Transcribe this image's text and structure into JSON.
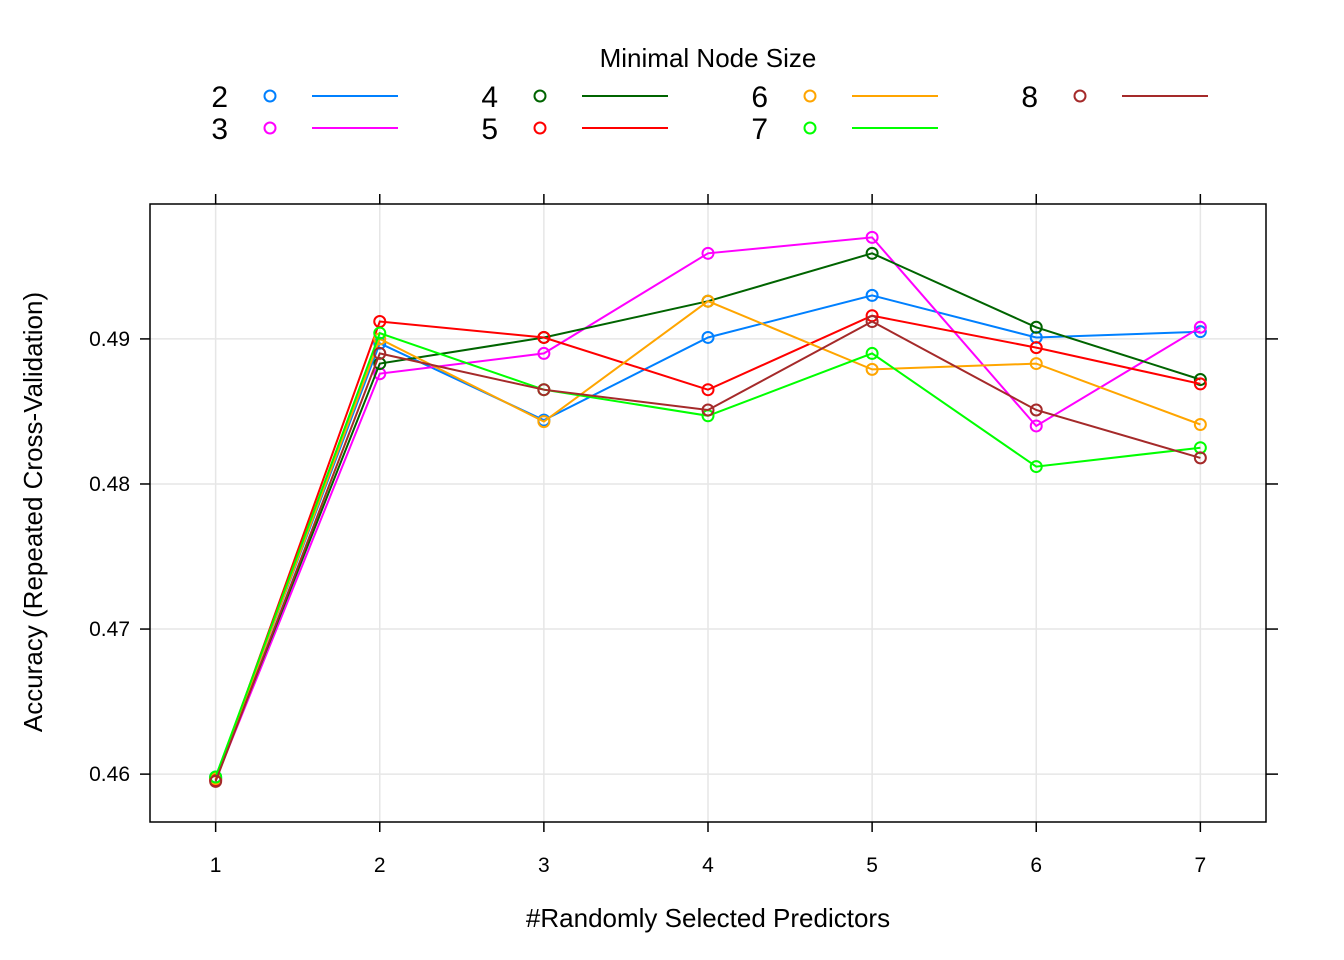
{
  "chart_data": {
    "type": "line",
    "legend": {
      "title": "Minimal Node Size",
      "placement": "top"
    },
    "xlabel": "#Randomly Selected Predictors",
    "ylabel": "Accuracy (Repeated Cross-Validation)",
    "x": [
      1,
      2,
      3,
      4,
      5,
      6,
      7
    ],
    "x_ticks": [
      "1",
      "2",
      "3",
      "4",
      "5",
      "6",
      "7"
    ],
    "y_ticks": [
      {
        "value": 0.46,
        "label": "0.46"
      },
      {
        "value": 0.47,
        "label": "0.47"
      },
      {
        "value": 0.48,
        "label": "0.48"
      },
      {
        "value": 0.49,
        "label": "0.49"
      }
    ],
    "xlim": [
      0.6,
      7.4
    ],
    "ylim": [
      0.4567,
      0.4993
    ],
    "grid": true,
    "series": [
      {
        "name": "2",
        "color": "#0080ff",
        "values": [
          0.4598,
          0.4897,
          0.4844,
          0.4901,
          0.493,
          0.4901,
          0.4905
        ]
      },
      {
        "name": "3",
        "color": "#ff00ff",
        "values": [
          0.4596,
          0.4876,
          0.489,
          0.4959,
          0.497,
          0.484,
          0.4908
        ]
      },
      {
        "name": "4",
        "color": "#006400",
        "values": [
          0.4597,
          0.4883,
          0.4901,
          0.4926,
          0.4959,
          0.4908,
          0.4872
        ]
      },
      {
        "name": "5",
        "color": "#ff0000",
        "values": [
          0.4596,
          0.4912,
          0.4901,
          0.4865,
          0.4916,
          0.4894,
          0.4869
        ]
      },
      {
        "name": "6",
        "color": "#ffa500",
        "values": [
          0.4597,
          0.49,
          0.4843,
          0.4926,
          0.4879,
          0.4883,
          0.4841
        ]
      },
      {
        "name": "7",
        "color": "#00ff00",
        "values": [
          0.4598,
          0.4904,
          0.4865,
          0.4847,
          0.489,
          0.4812,
          0.4825
        ]
      },
      {
        "name": "8",
        "color": "#a52a2a",
        "values": [
          0.4595,
          0.489,
          0.4865,
          0.4851,
          0.4912,
          0.4851,
          0.4818
        ]
      }
    ]
  }
}
